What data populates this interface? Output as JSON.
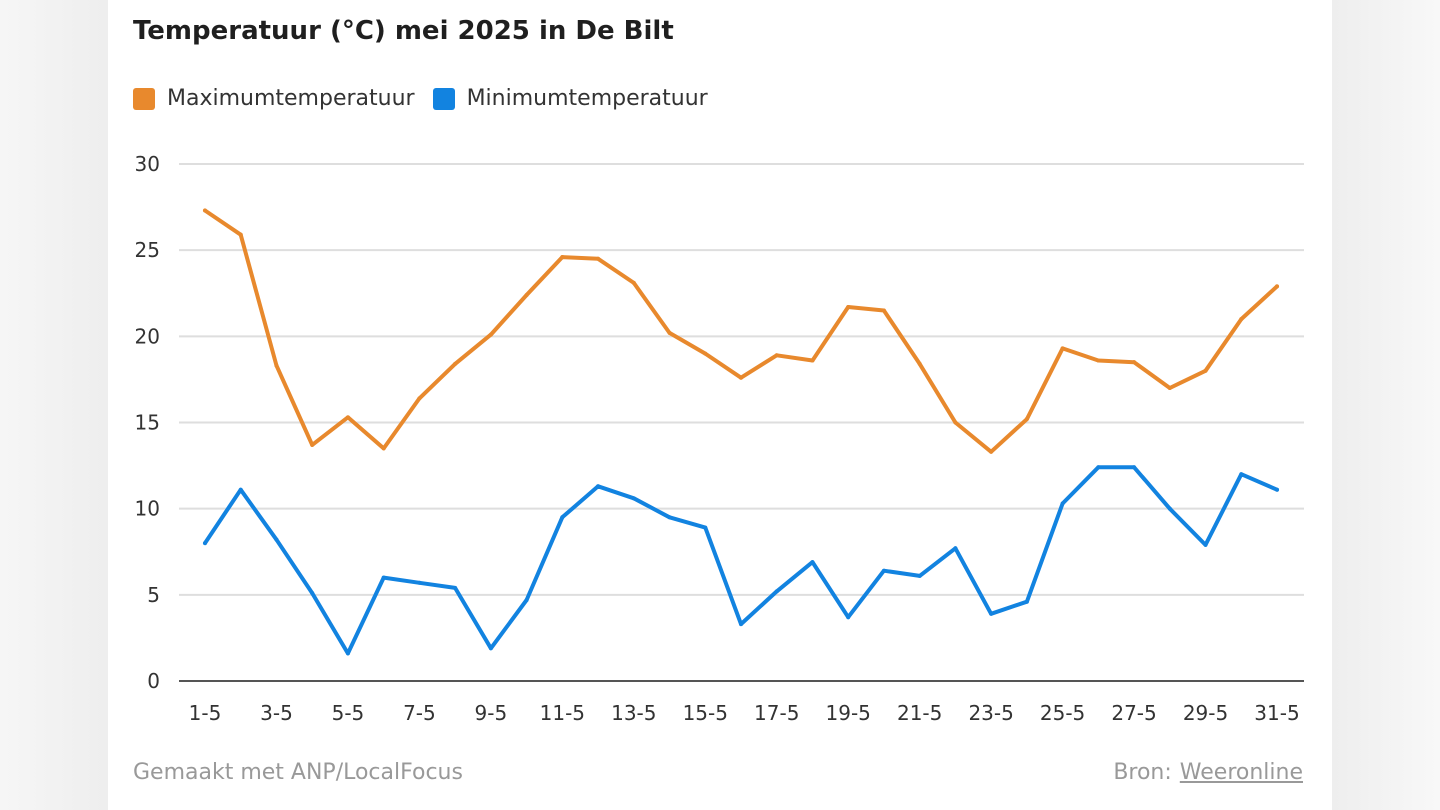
{
  "title": "Temperatuur (°C) mei 2025 in De Bilt",
  "legend": [
    {
      "label": "Maximumtemperatuur",
      "color": "#e8892d"
    },
    {
      "label": "Minimumtemperatuur",
      "color": "#1283e0"
    }
  ],
  "footer": {
    "made_with": "Gemaakt met ANP/LocalFocus",
    "source_label": "Bron:",
    "source_link": "Weeronline"
  },
  "chart_data": {
    "type": "line",
    "xlabel": "",
    "ylabel": "",
    "ylim": [
      0,
      30
    ],
    "yticks": [
      0,
      5,
      10,
      15,
      20,
      25,
      30
    ],
    "grid": true,
    "legend_position": "top-left",
    "x": [
      "1-5",
      "2-5",
      "3-5",
      "4-5",
      "5-5",
      "6-5",
      "7-5",
      "8-5",
      "9-5",
      "10-5",
      "11-5",
      "12-5",
      "13-5",
      "14-5",
      "15-5",
      "16-5",
      "17-5",
      "18-5",
      "19-5",
      "20-5",
      "21-5",
      "22-5",
      "23-5",
      "24-5",
      "25-5",
      "26-5",
      "27-5",
      "28-5",
      "29-5",
      "30-5",
      "31-5"
    ],
    "xtick_labels": [
      "1-5",
      "3-5",
      "5-5",
      "7-5",
      "9-5",
      "11-5",
      "13-5",
      "15-5",
      "17-5",
      "19-5",
      "21-5",
      "23-5",
      "25-5",
      "27-5",
      "29-5",
      "31-5"
    ],
    "series": [
      {
        "name": "Maximumtemperatuur",
        "color": "#e8892d",
        "values": [
          27.3,
          25.9,
          18.3,
          13.7,
          15.3,
          13.5,
          16.4,
          18.4,
          20.1,
          22.4,
          24.6,
          24.5,
          23.1,
          20.2,
          19.0,
          17.6,
          18.9,
          18.6,
          21.7,
          21.5,
          18.4,
          15.0,
          13.3,
          15.2,
          19.3,
          18.6,
          18.5,
          17.0,
          18.0,
          21.0,
          22.9
        ]
      },
      {
        "name": "Minimumtemperatuur",
        "color": "#1283e0",
        "values": [
          8.0,
          11.1,
          8.2,
          5.1,
          1.6,
          6.0,
          5.7,
          5.4,
          1.9,
          4.7,
          9.5,
          11.3,
          10.6,
          9.5,
          8.9,
          3.3,
          5.2,
          6.9,
          3.7,
          6.4,
          6.1,
          7.7,
          3.9,
          4.6,
          10.3,
          12.4,
          12.4,
          10.0,
          7.9,
          12.0,
          11.1
        ]
      }
    ]
  }
}
